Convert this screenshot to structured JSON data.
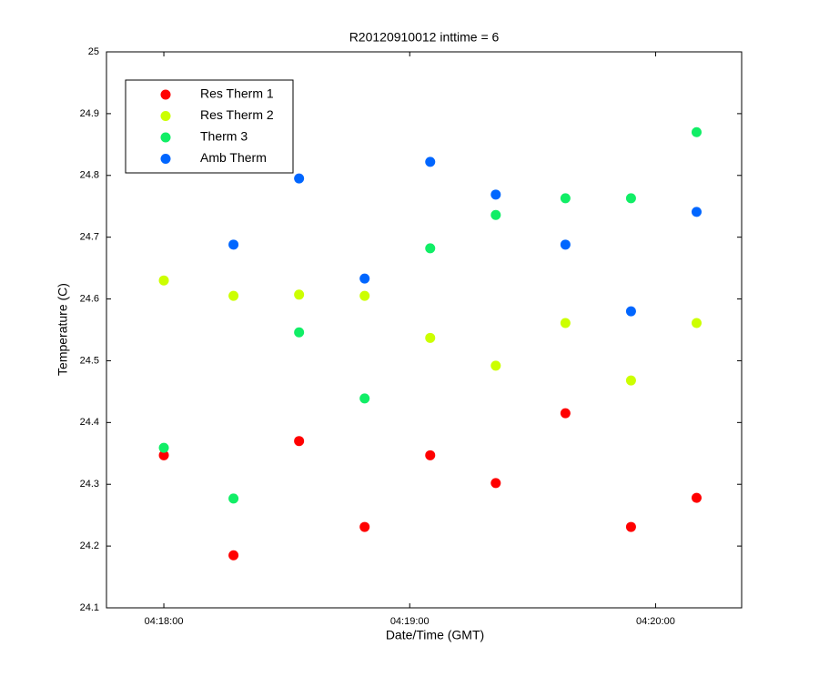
{
  "chart_data": {
    "type": "scatter",
    "title": "R20120910012 inttime = 6",
    "x_label": "Date/Time (GMT)",
    "y_label": "Temperature (C)",
    "x": [
      "04:18:00",
      "04:18:17",
      "04:18:33",
      "04:18:49",
      "04:19:05",
      "04:19:21",
      "04:19:38",
      "04:19:54",
      "04:20:10"
    ],
    "series": [
      {
        "name": "Res Therm 1",
        "color": "#ff0000",
        "values": [
          24.347,
          24.185,
          24.37,
          24.231,
          24.347,
          24.302,
          24.415,
          24.231,
          24.278
        ]
      },
      {
        "name": "Res Therm 2",
        "color": "#ccff00",
        "values": [
          24.63,
          24.605,
          24.607,
          24.605,
          24.537,
          24.492,
          24.561,
          24.468,
          24.561
        ]
      },
      {
        "name": "Therm 3",
        "color": "#11ee66",
        "values": [
          24.359,
          24.277,
          24.546,
          24.439,
          24.682,
          24.736,
          24.763,
          24.763,
          24.87
        ]
      },
      {
        "name": "Amb Therm",
        "color": "#0066ff",
        "values": [
          null,
          24.688,
          24.795,
          24.633,
          24.822,
          24.769,
          24.688,
          24.58,
          24.741
        ]
      }
    ],
    "xlim": [
      "04:17:46",
      "04:20:21"
    ],
    "xticks": [
      "04:18:00",
      "04:19:00",
      "04:20:00"
    ],
    "ylim": [
      24.1,
      25
    ],
    "yticks": [
      24.1,
      24.2,
      24.3,
      24.4,
      24.5,
      24.6,
      24.7,
      24.8,
      24.9,
      25
    ],
    "legend": "upper left"
  }
}
